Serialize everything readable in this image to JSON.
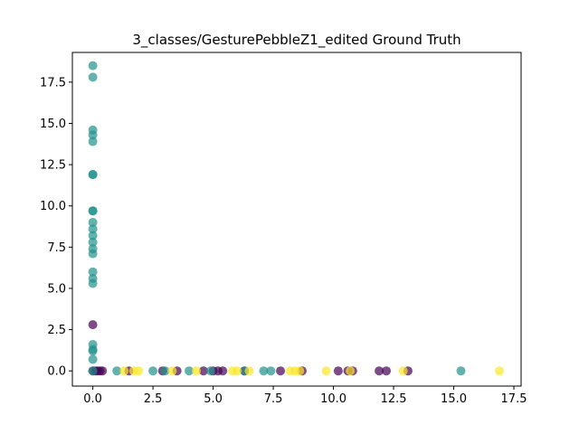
{
  "chart_data": {
    "type": "scatter",
    "title": "3_classes/GesturePebbleZ1_edited Ground Truth",
    "xlabel": "",
    "ylabel": "",
    "xlim": [
      -0.85,
      17.8
    ],
    "ylim": [
      -0.92,
      19.3
    ],
    "xticks": [
      0.0,
      2.5,
      5.0,
      7.5,
      10.0,
      12.5,
      15.0,
      17.5
    ],
    "xtick_labels": [
      "0.0",
      "2.5",
      "5.0",
      "7.5",
      "10.0",
      "12.5",
      "15.0",
      "17.5"
    ],
    "yticks": [
      0.0,
      2.5,
      5.0,
      7.5,
      10.0,
      12.5,
      15.0,
      17.5
    ],
    "ytick_labels": [
      "0.0",
      "2.5",
      "5.0",
      "7.5",
      "10.0",
      "12.5",
      "15.0",
      "17.5"
    ],
    "grid": false,
    "legend": "none",
    "series": [
      {
        "color": "#440154",
        "points": [
          [
            0.0,
            2.8
          ],
          [
            0.0,
            0.0
          ],
          [
            0.1,
            0.0
          ],
          [
            0.2,
            0.0
          ],
          [
            0.3,
            0.0
          ],
          [
            0.4,
            0.0
          ],
          [
            1.5,
            0.0
          ],
          [
            2.9,
            0.0
          ],
          [
            3.5,
            0.0
          ],
          [
            4.6,
            0.0
          ],
          [
            5.0,
            0.0
          ],
          [
            5.2,
            0.0
          ],
          [
            5.4,
            0.0
          ],
          [
            6.3,
            0.0
          ],
          [
            7.8,
            0.0
          ],
          [
            8.7,
            0.0
          ],
          [
            10.2,
            0.0
          ],
          [
            10.6,
            0.0
          ],
          [
            10.8,
            0.0
          ],
          [
            11.9,
            0.0
          ],
          [
            12.2,
            0.0
          ],
          [
            13.1,
            0.0
          ]
        ]
      },
      {
        "color": "#21918c",
        "points": [
          [
            0.0,
            18.5
          ],
          [
            0.0,
            17.8
          ],
          [
            0.0,
            14.6
          ],
          [
            0.0,
            14.3
          ],
          [
            0.0,
            13.9
          ],
          [
            0.0,
            11.9
          ],
          [
            0.0,
            11.9
          ],
          [
            0.0,
            9.7
          ],
          [
            0.0,
            9.7
          ],
          [
            0.0,
            9.0
          ],
          [
            0.0,
            8.6
          ],
          [
            0.0,
            8.2
          ],
          [
            0.0,
            7.8
          ],
          [
            0.0,
            7.4
          ],
          [
            0.0,
            7.1
          ],
          [
            0.0,
            6.0
          ],
          [
            0.0,
            5.6
          ],
          [
            0.0,
            5.3
          ],
          [
            0.0,
            1.6
          ],
          [
            0.0,
            1.3
          ],
          [
            0.0,
            1.2
          ],
          [
            0.0,
            0.7
          ],
          [
            0.0,
            0.0
          ],
          [
            1.0,
            0.0
          ],
          [
            2.5,
            0.0
          ],
          [
            3.0,
            0.0
          ],
          [
            4.0,
            0.0
          ],
          [
            4.9,
            0.0
          ],
          [
            6.3,
            0.0
          ],
          [
            7.1,
            0.0
          ],
          [
            7.4,
            0.0
          ],
          [
            15.3,
            0.0
          ]
        ]
      },
      {
        "color": "#fde725",
        "points": [
          [
            1.3,
            0.0
          ],
          [
            1.7,
            0.0
          ],
          [
            1.9,
            0.0
          ],
          [
            3.3,
            0.0
          ],
          [
            4.3,
            0.0
          ],
          [
            5.8,
            0.0
          ],
          [
            6.0,
            0.0
          ],
          [
            6.5,
            0.0
          ],
          [
            8.2,
            0.0
          ],
          [
            8.4,
            0.0
          ],
          [
            8.6,
            0.0
          ],
          [
            9.7,
            0.0
          ],
          [
            10.7,
            0.0
          ],
          [
            12.9,
            0.0
          ],
          [
            16.9,
            0.0
          ]
        ]
      }
    ]
  }
}
